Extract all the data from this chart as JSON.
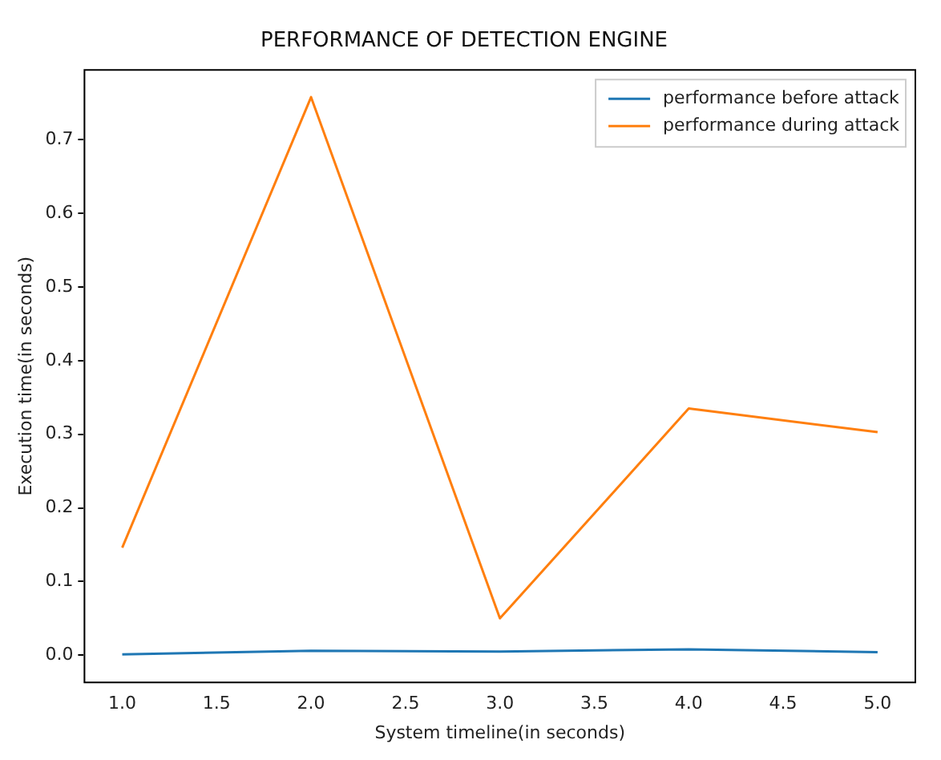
{
  "chart_data": {
    "type": "line",
    "title": "PERFORMANCE OF DETECTION ENGINE",
    "xlabel": "System timeline(in seconds)",
    "ylabel": "Execution time(in seconds)",
    "x": [
      1,
      2,
      3,
      4,
      5
    ],
    "series": [
      {
        "name": "performance before attack",
        "color": "#1f77b4",
        "values": [
          0.001,
          0.006,
          0.005,
          0.008,
          0.004
        ]
      },
      {
        "name": "performance during attack",
        "color": "#ff7f0e",
        "values": [
          0.146,
          0.758,
          0.05,
          0.335,
          0.303
        ]
      }
    ],
    "xlim": [
      0.8,
      5.2
    ],
    "xticks": [
      {
        "value": 1,
        "label": "1.0"
      },
      {
        "value": 1.5,
        "label": "1.5"
      },
      {
        "value": 2,
        "label": "2.0"
      },
      {
        "value": 2.5,
        "label": "2.5"
      },
      {
        "value": 3,
        "label": "3.0"
      },
      {
        "value": 3.5,
        "label": "3.5"
      },
      {
        "value": 4,
        "label": "4.0"
      },
      {
        "value": 4.5,
        "label": "4.5"
      },
      {
        "value": 5,
        "label": "5.0"
      }
    ],
    "ylim": [
      -0.037,
      0.795
    ],
    "yticks": [
      {
        "value": 0,
        "label": "0.0"
      },
      {
        "value": 0.1,
        "label": "0.1"
      },
      {
        "value": 0.2,
        "label": "0.2"
      },
      {
        "value": 0.3,
        "label": "0.3"
      },
      {
        "value": 0.4,
        "label": "0.4"
      },
      {
        "value": 0.5,
        "label": "0.5"
      },
      {
        "value": 0.6,
        "label": "0.6"
      },
      {
        "value": 0.7,
        "label": "0.7"
      }
    ],
    "grid": false,
    "legend": "top right",
    "marker": "none",
    "line_style": "solid"
  }
}
